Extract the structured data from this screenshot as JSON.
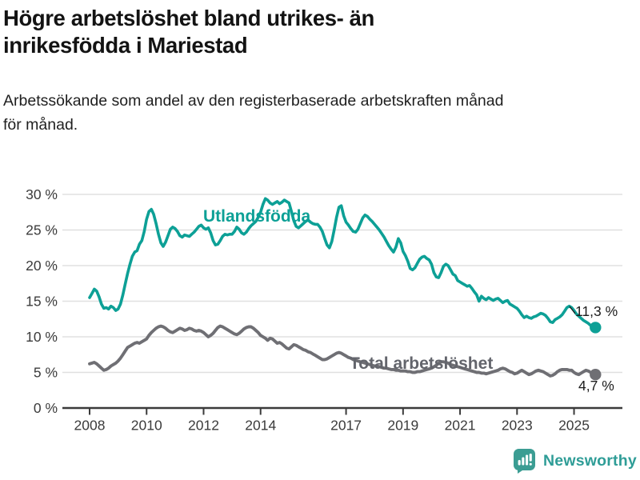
{
  "header": {
    "title": "Högre arbetslöshet bland utrikes- än inrikesfödda i Mariestad",
    "subtitle": "Arbetssökande som andel av den registerbaserade arbetskraften månad för månad."
  },
  "chart_data": {
    "type": "line",
    "unit": "%",
    "frequency": "monthly",
    "x_start": "2008-01",
    "x_end": "2025-10",
    "ylim": [
      0,
      30
    ],
    "y_ticks": [
      0,
      5,
      10,
      15,
      20,
      25,
      30
    ],
    "y_tick_suffix": " %",
    "x_tick_years": [
      2008,
      2010,
      2012,
      2014,
      2017,
      2019,
      2021,
      2023,
      2025
    ],
    "grid": "horizontal",
    "legend_position": "inline-labels",
    "series": [
      {
        "name": "Utlandsfödda",
        "color": "#0da096",
        "label_color": "#0da096",
        "end_label": "11,3 %",
        "end_value": 11.3,
        "values": [
          15.5,
          16.1,
          16.7,
          16.4,
          15.6,
          14.6,
          14.0,
          14.1,
          13.9,
          14.3,
          14.1,
          13.7,
          13.9,
          14.6,
          15.9,
          17.4,
          18.9,
          20.2,
          21.3,
          21.9,
          22.1,
          23.0,
          23.5,
          24.8,
          26.5,
          27.6,
          27.9,
          27.2,
          25.9,
          24.4,
          23.2,
          22.7,
          23.3,
          24.2,
          25.1,
          25.4,
          25.2,
          24.8,
          24.2,
          24.0,
          24.3,
          24.2,
          24.1,
          24.4,
          24.7,
          25.1,
          25.5,
          25.7,
          25.3,
          25.1,
          25.3,
          24.6,
          23.5,
          22.9,
          23.0,
          23.5,
          24.1,
          24.4,
          24.3,
          24.4,
          24.4,
          24.8,
          25.4,
          25.1,
          24.6,
          24.4,
          24.7,
          25.2,
          25.6,
          25.9,
          26.2,
          26.8,
          27.5,
          28.6,
          29.4,
          29.2,
          28.8,
          28.6,
          28.8,
          29.0,
          28.7,
          28.9,
          29.2,
          29.0,
          28.8,
          27.6,
          26.3,
          25.5,
          25.3,
          25.6,
          25.9,
          26.2,
          26.4,
          26.1,
          25.9,
          25.8,
          25.8,
          25.4,
          24.8,
          23.8,
          22.9,
          22.5,
          23.4,
          25.0,
          26.8,
          28.2,
          28.4,
          27.0,
          26.1,
          25.7,
          25.2,
          24.8,
          24.7,
          25.1,
          25.9,
          26.7,
          27.1,
          26.9,
          26.5,
          26.2,
          25.8,
          25.4,
          25.0,
          24.5,
          24.0,
          23.4,
          22.8,
          22.3,
          21.9,
          22.6,
          23.8,
          23.2,
          22.0,
          21.4,
          20.6,
          19.6,
          19.4,
          19.7,
          20.3,
          20.9,
          21.2,
          21.3,
          21.0,
          20.8,
          20.2,
          19.0,
          18.4,
          18.3,
          19.0,
          19.9,
          20.2,
          20.0,
          19.4,
          18.8,
          18.6,
          17.9,
          17.7,
          17.5,
          17.3,
          17.1,
          17.2,
          16.8,
          16.3,
          15.9,
          15.0,
          15.7,
          15.4,
          15.2,
          15.5,
          15.3,
          15.1,
          15.3,
          15.4,
          15.1,
          14.8,
          15.0,
          15.1,
          14.6,
          14.4,
          14.2,
          14.0,
          13.6,
          13.1,
          12.7,
          12.9,
          12.7,
          12.6,
          12.8,
          12.9,
          13.1,
          13.3,
          13.2,
          13.0,
          12.6,
          12.1,
          12.0,
          12.4,
          12.6,
          12.8,
          13.1,
          13.6,
          14.1,
          14.3,
          14.1,
          13.7,
          13.2,
          12.9,
          12.6,
          12.3,
          12.1,
          11.9,
          11.6,
          11.4,
          11.3
        ]
      },
      {
        "name": "Total arbetslöshet",
        "color": "#6f6f74",
        "label_color": "#63656c",
        "end_label": "4,7 %",
        "end_value": 4.7,
        "values": [
          6.2,
          6.3,
          6.4,
          6.2,
          5.9,
          5.6,
          5.3,
          5.4,
          5.6,
          5.9,
          6.1,
          6.3,
          6.6,
          7.0,
          7.5,
          8.0,
          8.5,
          8.7,
          8.9,
          9.1,
          9.2,
          9.1,
          9.3,
          9.5,
          9.7,
          10.2,
          10.6,
          10.9,
          11.2,
          11.4,
          11.5,
          11.4,
          11.2,
          10.9,
          10.7,
          10.6,
          10.8,
          11.0,
          11.2,
          11.1,
          10.9,
          11.0,
          11.2,
          11.1,
          10.9,
          10.8,
          10.9,
          10.8,
          10.6,
          10.3,
          10.0,
          10.2,
          10.5,
          10.9,
          11.3,
          11.5,
          11.4,
          11.2,
          11.0,
          10.8,
          10.6,
          10.4,
          10.3,
          10.5,
          10.8,
          11.1,
          11.3,
          11.4,
          11.4,
          11.2,
          10.9,
          10.6,
          10.2,
          10.0,
          9.8,
          9.5,
          9.8,
          9.7,
          9.4,
          9.1,
          9.2,
          9.0,
          8.7,
          8.4,
          8.3,
          8.6,
          8.9,
          8.8,
          8.6,
          8.4,
          8.2,
          8.1,
          7.9,
          7.8,
          7.6,
          7.4,
          7.2,
          7.0,
          6.8,
          6.8,
          6.9,
          7.1,
          7.3,
          7.5,
          7.7,
          7.8,
          7.7,
          7.5,
          7.3,
          7.1,
          7.0,
          6.8,
          6.7,
          6.6,
          6.5,
          6.4,
          6.3,
          6.2,
          6.1,
          6.0,
          5.9,
          5.9,
          5.8,
          5.7,
          5.6,
          5.6,
          5.5,
          5.4,
          5.4,
          5.3,
          5.3,
          5.2,
          5.2,
          5.2,
          5.1,
          5.1,
          5.0,
          5.0,
          5.1,
          5.1,
          5.2,
          5.3,
          5.4,
          5.5,
          5.6,
          5.8,
          6.0,
          6.3,
          6.5,
          6.5,
          6.4,
          6.3,
          6.1,
          6.0,
          5.9,
          5.8,
          5.7,
          5.6,
          5.5,
          5.4,
          5.3,
          5.2,
          5.1,
          5.0,
          5.0,
          4.9,
          4.9,
          4.8,
          4.9,
          5.0,
          5.1,
          5.2,
          5.3,
          5.5,
          5.6,
          5.5,
          5.3,
          5.1,
          5.0,
          4.8,
          4.9,
          5.1,
          5.3,
          5.1,
          4.9,
          4.7,
          4.8,
          5.0,
          5.2,
          5.3,
          5.2,
          5.1,
          4.9,
          4.7,
          4.5,
          4.6,
          4.8,
          5.1,
          5.3,
          5.4,
          5.4,
          5.4,
          5.3,
          5.3,
          5.0,
          4.8,
          4.7,
          4.9,
          5.1,
          5.3,
          5.2,
          5.0,
          4.8,
          4.7
        ]
      }
    ]
  },
  "footer": {
    "brand": "Newsworthy"
  },
  "colors": {
    "accent_teal": "#0da096",
    "series_gray": "#6f6f74",
    "grid": "#e0e0e0",
    "axis": "#3a3a3a",
    "tick_text": "#3b3b3b",
    "annotation_text": "#1c1c1c",
    "logo_teal": "#3b9d93",
    "wordmark_teal": "#2f9d97"
  }
}
